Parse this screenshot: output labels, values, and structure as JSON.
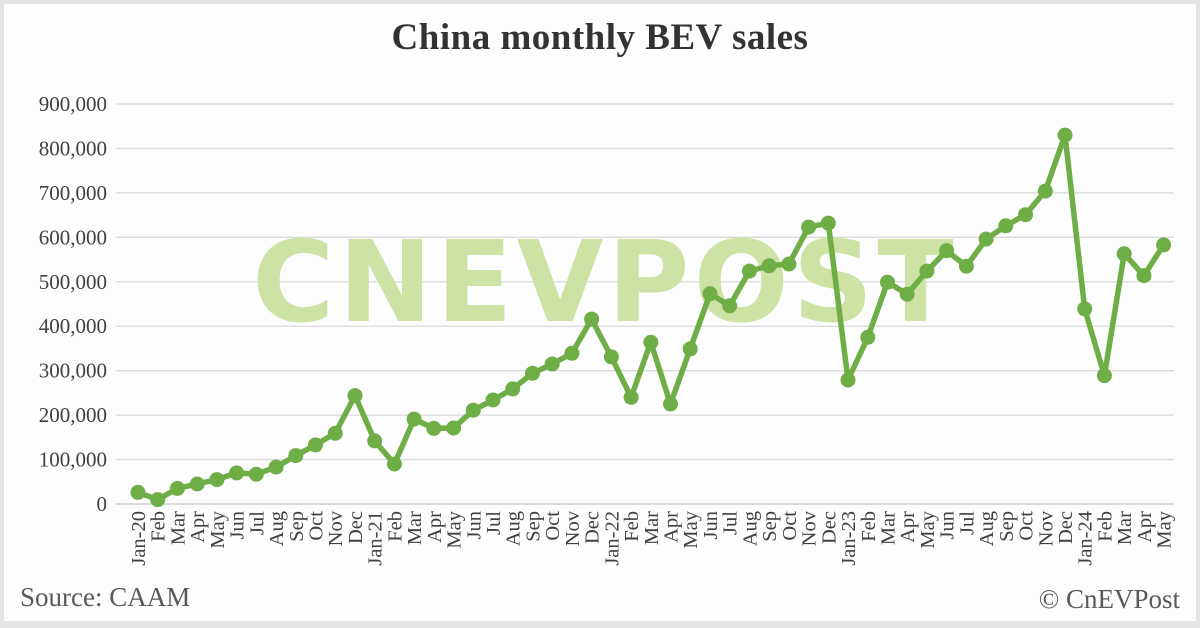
{
  "title": "China monthly BEV sales",
  "watermark": "CNEVPOST",
  "footer": {
    "source": "Source: CAAM",
    "copyright": "© CnEVPost"
  },
  "colors": {
    "line": "#6fad47",
    "marker": "#6fad47",
    "watermark": "#cde2a4",
    "grid": "#d9d9d9",
    "axis": "#c6c6c6",
    "tick_text": "#404040",
    "title_text": "#333333",
    "footer_text": "#595959"
  },
  "chart_data": {
    "type": "line",
    "title": "China monthly BEV sales",
    "xlabel": "",
    "ylabel": "",
    "legend": "none",
    "grid": "horizontal",
    "marker": "circle",
    "ylim": [
      0,
      900000
    ],
    "y_tick_step": 100000,
    "y_tick_labels": [
      "0",
      "100,000",
      "200,000",
      "300,000",
      "400,000",
      "500,000",
      "600,000",
      "700,000",
      "800,000",
      "900,000"
    ],
    "x_categories": [
      "Jan-20",
      "Feb",
      "Mar",
      "Apr",
      "May",
      "Jun",
      "Jul",
      "Aug",
      "Sep",
      "Oct",
      "Nov",
      "Dec",
      "Jan-21",
      "Feb",
      "Mar",
      "Apr",
      "May",
      "Jun",
      "Jul",
      "Aug",
      "Sep",
      "Oct",
      "Nov",
      "Dec",
      "Jan-22",
      "Feb",
      "Mar",
      "Apr",
      "May",
      "Jun",
      "Jul",
      "Aug",
      "Sep",
      "Oct",
      "Nov",
      "Dec",
      "Jan-23",
      "Feb",
      "Mar",
      "Apr",
      "May",
      "Jun",
      "Jul",
      "Aug",
      "Sep",
      "Oct",
      "Nov",
      "Dec",
      "Jan-24",
      "Feb",
      "Mar",
      "Apr",
      "May"
    ],
    "values": [
      26000,
      10000,
      35000,
      45000,
      55000,
      70000,
      67000,
      83000,
      109000,
      133000,
      159000,
      244000,
      142000,
      90000,
      191000,
      170000,
      171000,
      211000,
      234000,
      259000,
      294000,
      315000,
      339000,
      416000,
      331000,
      240000,
      364000,
      225000,
      349000,
      473000,
      446000,
      524000,
      536000,
      540000,
      623000,
      632000,
      279000,
      375000,
      499000,
      472000,
      524000,
      570000,
      535000,
      596000,
      626000,
      651000,
      704000,
      830000,
      439000,
      289000,
      563000,
      514000,
      583000
    ],
    "source": "CAAM"
  }
}
